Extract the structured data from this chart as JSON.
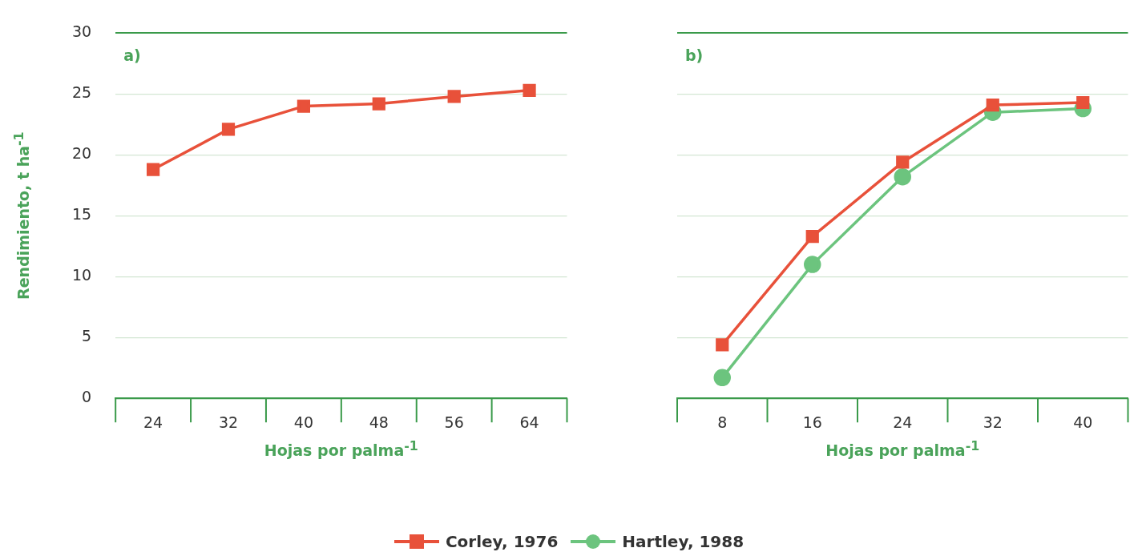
{
  "chart_data": [
    {
      "type": "line",
      "title": "a)",
      "xlabel": "Hojas por palma$^{-1}$",
      "ylabel": "Rendimiento, t ha$^{-1}$",
      "categories": [
        "24",
        "32",
        "40",
        "48",
        "56",
        "64"
      ],
      "series": [
        {
          "name": "Corley, 1976",
          "color": "#e8513a",
          "marker": "square",
          "values": [
            18.8,
            22.1,
            24.0,
            24.2,
            24.8,
            25.3
          ]
        }
      ],
      "ylim": [
        0,
        30
      ],
      "yticks": [
        0,
        5,
        10,
        15,
        20,
        25,
        30
      ],
      "grid": "y",
      "legend": "bottom"
    },
    {
      "type": "line",
      "title": "b)",
      "xlabel": "Hojas por palma$^{-1}$",
      "categories": [
        "8",
        "16",
        "24",
        "32",
        "40"
      ],
      "series": [
        {
          "name": "Corley, 1976",
          "color": "#e8513a",
          "marker": "square",
          "values": [
            4.4,
            13.3,
            19.4,
            24.1,
            24.3
          ]
        },
        {
          "name": "Hartley, 1988",
          "color": "#6cc47e",
          "marker": "circle",
          "values": [
            1.7,
            11.0,
            18.2,
            23.5,
            23.8
          ]
        }
      ],
      "ylim": [
        0,
        30
      ],
      "yticks": [
        0,
        5,
        10,
        15,
        20,
        25,
        30
      ],
      "grid": "y",
      "tick_labels": "x",
      "legend": "bottom"
    }
  ]
}
